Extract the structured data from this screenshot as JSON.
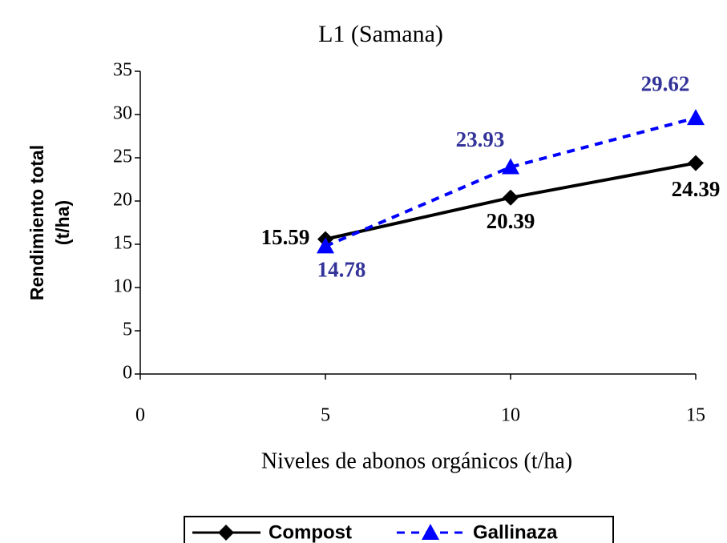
{
  "chart_data": {
    "type": "line",
    "title": "L1 (Samana)",
    "x_label": "Niveles de abonos orgánicos (t/ha)",
    "y_label": [
      "Rendimiento total",
      "(t/ha)"
    ],
    "x": [
      5,
      10,
      15
    ],
    "series": [
      {
        "name": "Compost",
        "color": "#000000",
        "label_color": "#000000",
        "marker": "diamond",
        "line_style": "solid",
        "values": [
          15.59,
          20.39,
          24.39
        ]
      },
      {
        "name": "Gallinaza",
        "color": "#0000ff",
        "label_color": "#333399",
        "marker": "triangle",
        "line_style": "dashed",
        "values": [
          14.78,
          23.93,
          29.62
        ]
      }
    ],
    "xlim": [
      0,
      15
    ],
    "xticks": [
      0,
      5,
      10,
      15
    ],
    "ylim": [
      0,
      35
    ],
    "yticks": [
      0,
      5,
      10,
      15,
      20,
      25,
      30,
      35
    ],
    "legend": "bottom"
  }
}
